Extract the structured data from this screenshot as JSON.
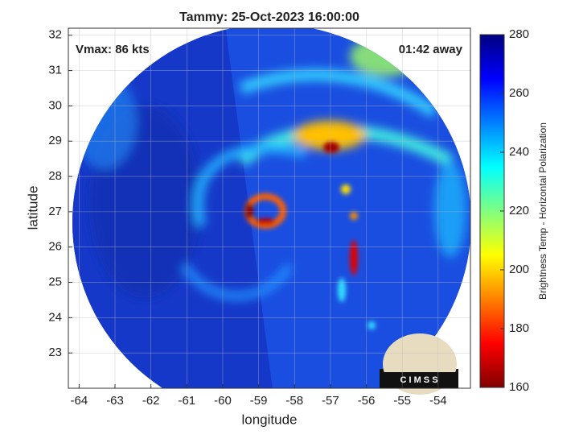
{
  "chart_data": {
    "type": "image",
    "title": "Tammy: 25-Oct-2023 16:00:00",
    "annotations": [
      "Vmax: 86 kts",
      "01:42 away"
    ],
    "xlabel": "longitude",
    "ylabel": "latitude",
    "xlim": [
      -64.3,
      -53.1
    ],
    "xticks": [
      -64,
      -63,
      -62,
      -61,
      -60,
      -59,
      -58,
      -57,
      -56,
      -55,
      -54
    ],
    "ylim": [
      22,
      32.2
    ],
    "yticks": [
      23,
      24,
      25,
      26,
      27,
      28,
      29,
      30,
      31,
      32
    ],
    "grid": true,
    "colorbar": {
      "label": "Brightness Temp - Horizontal Polarization",
      "lim": [
        160,
        280
      ],
      "ticks": [
        160,
        180,
        200,
        220,
        240,
        260,
        280
      ],
      "colormap": [
        "#800000",
        "#ff0000",
        "#ff8000",
        "#ffff00",
        "#80ff80",
        "#00ffff",
        "#0080ff",
        "#0000ff",
        "#000080"
      ]
    },
    "logo": "C I M S S"
  }
}
